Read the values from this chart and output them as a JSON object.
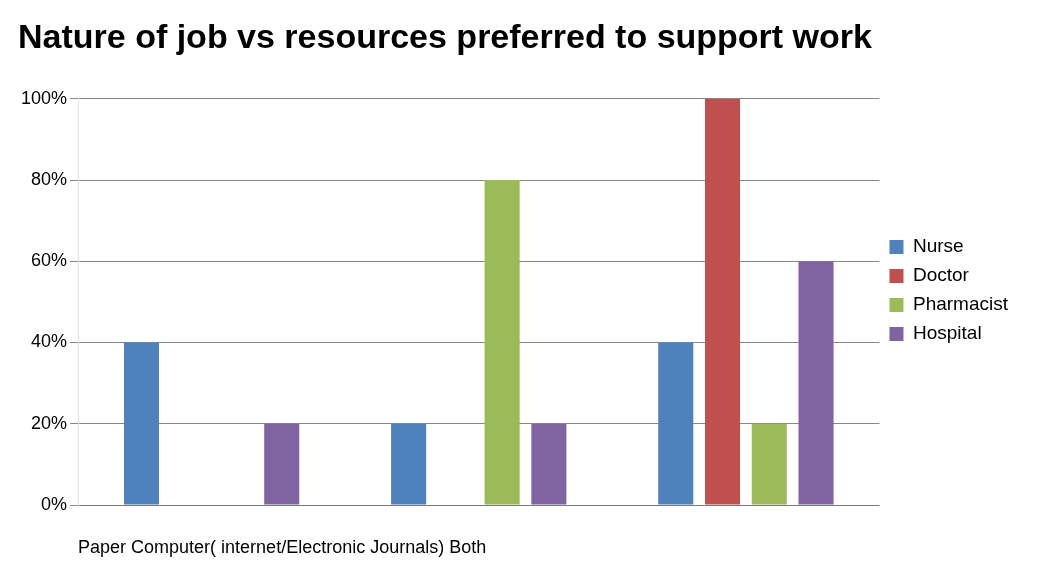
{
  "chart_data": {
    "type": "bar",
    "title": "Nature of job vs resources preferred to support work",
    "xlabel": "Paper Computer( internet/Electronic Journals) Both",
    "categories": [
      null,
      null,
      null
    ],
    "series": [
      {
        "name": "Nurse",
        "color": "#4f81bd",
        "values": [
          40,
          20,
          40
        ]
      },
      {
        "name": "Doctor",
        "color": "#c0504d",
        "values": [
          0,
          0,
          100
        ]
      },
      {
        "name": "Pharmacist",
        "color": "#9bbb59",
        "values": [
          0,
          80,
          20
        ]
      },
      {
        "name": "Hospital",
        "color": "#8064a2",
        "values": [
          20,
          20,
          60
        ]
      }
    ],
    "ylim": [
      0,
      100
    ],
    "yticks": [
      {
        "value": 0,
        "label": "0%"
      },
      {
        "value": 20,
        "label": "20%"
      },
      {
        "value": 40,
        "label": "40%"
      },
      {
        "value": 60,
        "label": "60%"
      },
      {
        "value": 80,
        "label": "80%"
      },
      {
        "value": 100,
        "label": "100%"
      }
    ],
    "grid": "y",
    "legend": "right"
  }
}
